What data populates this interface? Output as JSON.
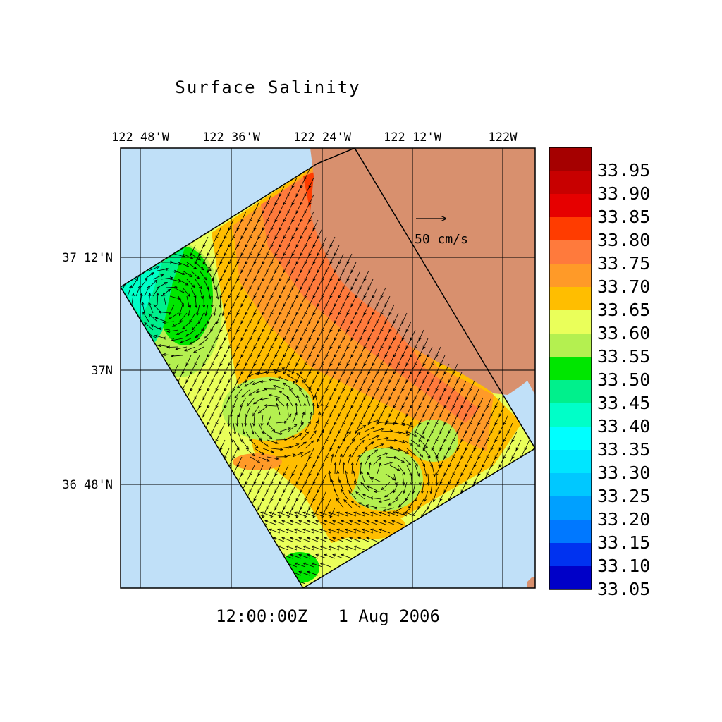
{
  "title": "Surface Salinity",
  "time_label": "12:00:00Z   1 Aug 2006",
  "lon_ticks": [
    "122 48'W",
    "122 36'W",
    "122 24'W",
    "122 12'W",
    "122W"
  ],
  "lat_ticks": [
    "37 12'N",
    "37N",
    "36 48'N"
  ],
  "vector_scale_label": "50 cm/s",
  "colorbar": {
    "labels": [
      "33.95",
      "33.90",
      "33.85",
      "33.80",
      "33.75",
      "33.70",
      "33.65",
      "33.60",
      "33.55",
      "33.50",
      "33.45",
      "33.40",
      "33.35",
      "33.30",
      "33.25",
      "33.20",
      "33.15",
      "33.10",
      "33.05"
    ],
    "colors": [
      "#a50000",
      "#c80000",
      "#e60000",
      "#ff3c00",
      "#ff7a3c",
      "#ff9a28",
      "#ffbe00",
      "#eaff5a",
      "#b4f050",
      "#00e600",
      "#00f08c",
      "#00ffc8",
      "#00ffff",
      "#00e6ff",
      "#00c8ff",
      "#00a0ff",
      "#0078ff",
      "#0032f0",
      "#0000c8"
    ]
  },
  "colors": {
    "ocean": "#c0e0f8",
    "land": "#d8906e",
    "grid": "#000000"
  }
}
